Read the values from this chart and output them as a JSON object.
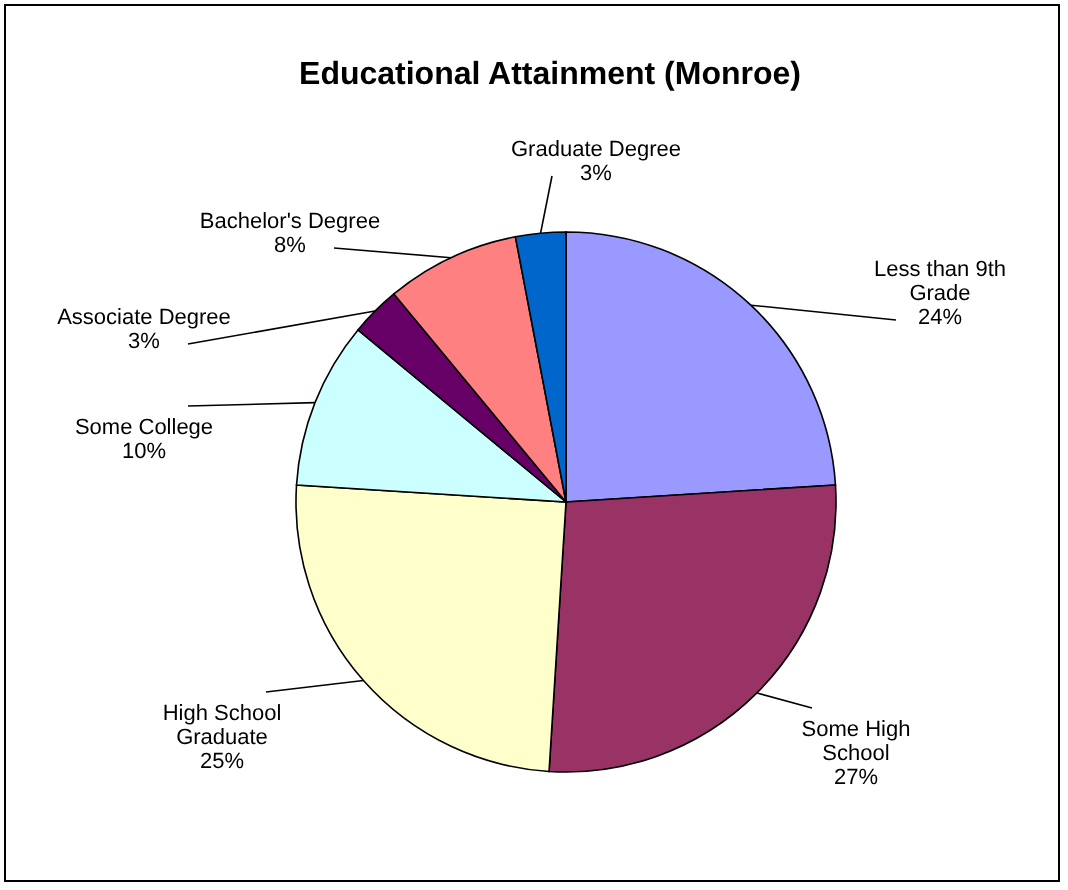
{
  "chart_data": {
    "type": "pie",
    "title": "Educational Attainment (Monroe)",
    "categories": [
      "Less than 9th Grade",
      "Some High School",
      "High School Graduate",
      "Some College",
      "Associate Degree",
      "Bachelor's Degree",
      "Graduate Degree"
    ],
    "values": [
      24,
      27,
      25,
      10,
      3,
      8,
      3
    ],
    "colors": [
      "#9999ff",
      "#993366",
      "#ffffcc",
      "#ccffff",
      "#660066",
      "#ff8080",
      "#0066cc"
    ],
    "value_labels": [
      "24%",
      "27%",
      "25%",
      "10%",
      "3%",
      "8%",
      "3%"
    ]
  }
}
